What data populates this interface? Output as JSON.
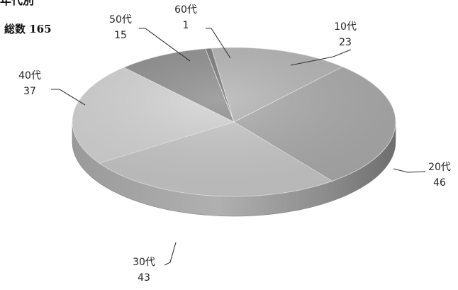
{
  "title": "年代別",
  "total": {
    "label": "総数",
    "value": 165
  },
  "colors": {
    "rim": "#8f8f8f",
    "leader": "#333333",
    "text": "#222222"
  },
  "chart_data": {
    "type": "pie",
    "title": "年代別",
    "categories": [
      "10代",
      "20代",
      "30代",
      "40代",
      "50代",
      "60代"
    ],
    "values": [
      23,
      46,
      43,
      37,
      15,
      1
    ],
    "slice_colors": [
      "#b4b4b4",
      "#aaaaaa",
      "#c7c7c7",
      "#d3d3d3",
      "#8e8e8e",
      "#7a7a7a"
    ],
    "total": 165,
    "legend": "none",
    "style": "3d"
  }
}
